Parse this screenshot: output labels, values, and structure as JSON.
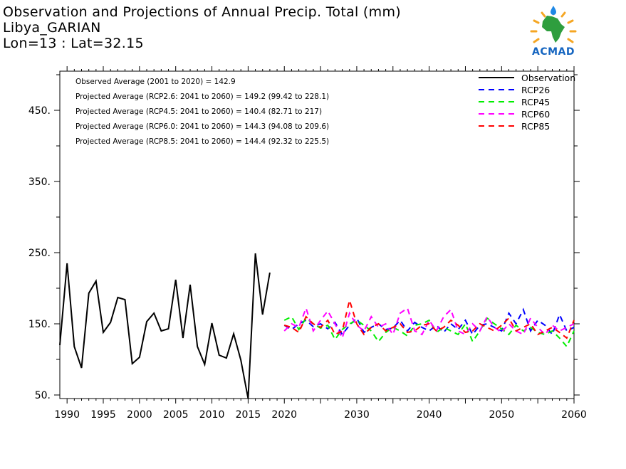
{
  "header": {
    "title": "Observation and Projections of Annual Precip. Total (mm)",
    "location": "Libya_GARIAN",
    "coords": "Lon=13 : Lat=32.15"
  },
  "logo": {
    "text": "ACMAD"
  },
  "chart_data": {
    "type": "line",
    "title": "Observation and Projections of Annual Precip. Total (mm)",
    "xlabel": "",
    "ylabel": "",
    "xlim": [
      1989,
      2060
    ],
    "ylim": [
      45,
      505
    ],
    "x_ticks": [
      {
        "v": 1990,
        "label": "1990"
      },
      {
        "v": 1995,
        "label": "1995"
      },
      {
        "v": 2000,
        "label": "2000"
      },
      {
        "v": 2005,
        "label": "2005"
      },
      {
        "v": 2010,
        "label": "2010"
      },
      {
        "v": 2015,
        "label": "2015"
      },
      {
        "v": 2020,
        "label": "2020"
      },
      {
        "v": 2030,
        "label": "2030"
      },
      {
        "v": 2040,
        "label": "2040"
      },
      {
        "v": 2050,
        "label": "2050"
      },
      {
        "v": 2060,
        "label": "2060"
      }
    ],
    "y_ticks": [
      {
        "v": 50,
        "label": "50."
      },
      {
        "v": 150,
        "label": "150."
      },
      {
        "v": 250,
        "label": "250."
      },
      {
        "v": 350,
        "label": "350."
      },
      {
        "v": 450,
        "label": "450."
      }
    ],
    "annotations": [
      "Observed Average (2001 to 2020) = 142.9",
      "Projected Average (RCP2.6: 2041 to 2060) = 149.2 (99.42 to 228.1)",
      "Projected Average (RCP4.5: 2041 to 2060) = 140.4 (82.71 to 217)",
      "Projected Average (RCP6.0: 2041 to 2060) = 144.3 (94.08 to 209.6)",
      "Projected Average (RCP8.5: 2041 to 2060) = 144.4 (92.32 to 225.5)"
    ],
    "legend_position": "top-right",
    "series": [
      {
        "name": "Observation",
        "color": "#000000",
        "dash": "solid",
        "x": [
          1989,
          1990,
          1991,
          1992,
          1993,
          1994,
          1995,
          1996,
          1997,
          1998,
          1999,
          2000,
          2001,
          2002,
          2003,
          2004,
          2005,
          2006,
          2007,
          2008,
          2009,
          2010,
          2011,
          2012,
          2013,
          2014,
          2015,
          2016,
          2017,
          2018,
          2019,
          2020
        ],
        "y": [
          120,
          235,
          118,
          88,
          193,
          210,
          138,
          152,
          187,
          184,
          94,
          103,
          153,
          165,
          140,
          143,
          212,
          130,
          205,
          118,
          93,
          151,
          106,
          102,
          136,
          99,
          45,
          249,
          163,
          222,
          null,
          null
        ]
      },
      {
        "name": "RCP26",
        "color": "#0000ff",
        "dash": "dashed",
        "x": [
          2020,
          2021,
          2022,
          2023,
          2024,
          2025,
          2026,
          2027,
          2028,
          2029,
          2030,
          2031,
          2032,
          2033,
          2034,
          2035,
          2036,
          2037,
          2038,
          2039,
          2040,
          2041,
          2042,
          2043,
          2044,
          2045,
          2046,
          2047,
          2048,
          2049,
          2050,
          2051,
          2052,
          2053,
          2054,
          2055,
          2056,
          2057,
          2058,
          2059,
          2060
        ],
        "y": [
          148,
          142,
          150,
          155,
          146,
          150,
          143,
          152,
          135,
          148,
          158,
          138,
          145,
          150,
          142,
          144,
          155,
          140,
          152,
          145,
          140,
          148,
          138,
          150,
          142,
          155,
          135,
          148,
          150,
          145,
          140,
          165,
          150,
          170,
          140,
          155,
          148,
          135,
          163,
          140,
          145
        ]
      },
      {
        "name": "RCP45",
        "color": "#00ee00",
        "dash": "dashed",
        "x": [
          2020,
          2021,
          2022,
          2023,
          2024,
          2025,
          2026,
          2027,
          2028,
          2029,
          2030,
          2031,
          2032,
          2033,
          2034,
          2035,
          2036,
          2037,
          2038,
          2039,
          2040,
          2041,
          2042,
          2043,
          2044,
          2045,
          2046,
          2047,
          2048,
          2049,
          2050,
          2051,
          2052,
          2053,
          2054,
          2055,
          2056,
          2057,
          2058,
          2059,
          2060
        ],
        "y": [
          155,
          160,
          142,
          158,
          150,
          144,
          148,
          128,
          142,
          150,
          155,
          148,
          140,
          125,
          138,
          145,
          140,
          133,
          148,
          150,
          155,
          138,
          145,
          140,
          135,
          150,
          125,
          140,
          158,
          150,
          143,
          135,
          148,
          140,
          145,
          138,
          135,
          140,
          130,
          118,
          140
        ]
      },
      {
        "name": "RCP60",
        "color": "#ff00ff",
        "dash": "dashed",
        "x": [
          2020,
          2021,
          2022,
          2023,
          2024,
          2025,
          2026,
          2027,
          2028,
          2029,
          2030,
          2031,
          2032,
          2033,
          2034,
          2035,
          2036,
          2037,
          2038,
          2039,
          2040,
          2041,
          2042,
          2043,
          2044,
          2045,
          2046,
          2047,
          2048,
          2049,
          2050,
          2051,
          2052,
          2053,
          2054,
          2055,
          2056,
          2057,
          2058,
          2059,
          2060
        ],
        "y": [
          140,
          150,
          145,
          172,
          140,
          155,
          168,
          150,
          130,
          165,
          148,
          140,
          160,
          145,
          150,
          135,
          165,
          172,
          140,
          135,
          155,
          140,
          160,
          170,
          140,
          135,
          150,
          140,
          160,
          145,
          138,
          150,
          140,
          135,
          158,
          145,
          135,
          148,
          140,
          145,
          150
        ]
      },
      {
        "name": "RCP85",
        "color": "#ff0000",
        "dash": "dashed",
        "x": [
          2020,
          2021,
          2022,
          2023,
          2024,
          2025,
          2026,
          2027,
          2028,
          2029,
          2030,
          2031,
          2032,
          2033,
          2034,
          2035,
          2036,
          2037,
          2038,
          2039,
          2040,
          2041,
          2042,
          2043,
          2044,
          2045,
          2046,
          2047,
          2048,
          2049,
          2050,
          2051,
          2052,
          2053,
          2054,
          2055,
          2056,
          2057,
          2058,
          2059,
          2060
        ],
        "y": [
          148,
          145,
          138,
          160,
          150,
          145,
          155,
          135,
          140,
          183,
          150,
          135,
          145,
          150,
          140,
          145,
          150,
          138,
          140,
          148,
          150,
          140,
          145,
          155,
          148,
          138,
          140,
          150,
          145,
          140,
          148,
          158,
          140,
          145,
          150,
          135,
          140,
          145,
          138,
          130,
          155
        ]
      }
    ]
  }
}
